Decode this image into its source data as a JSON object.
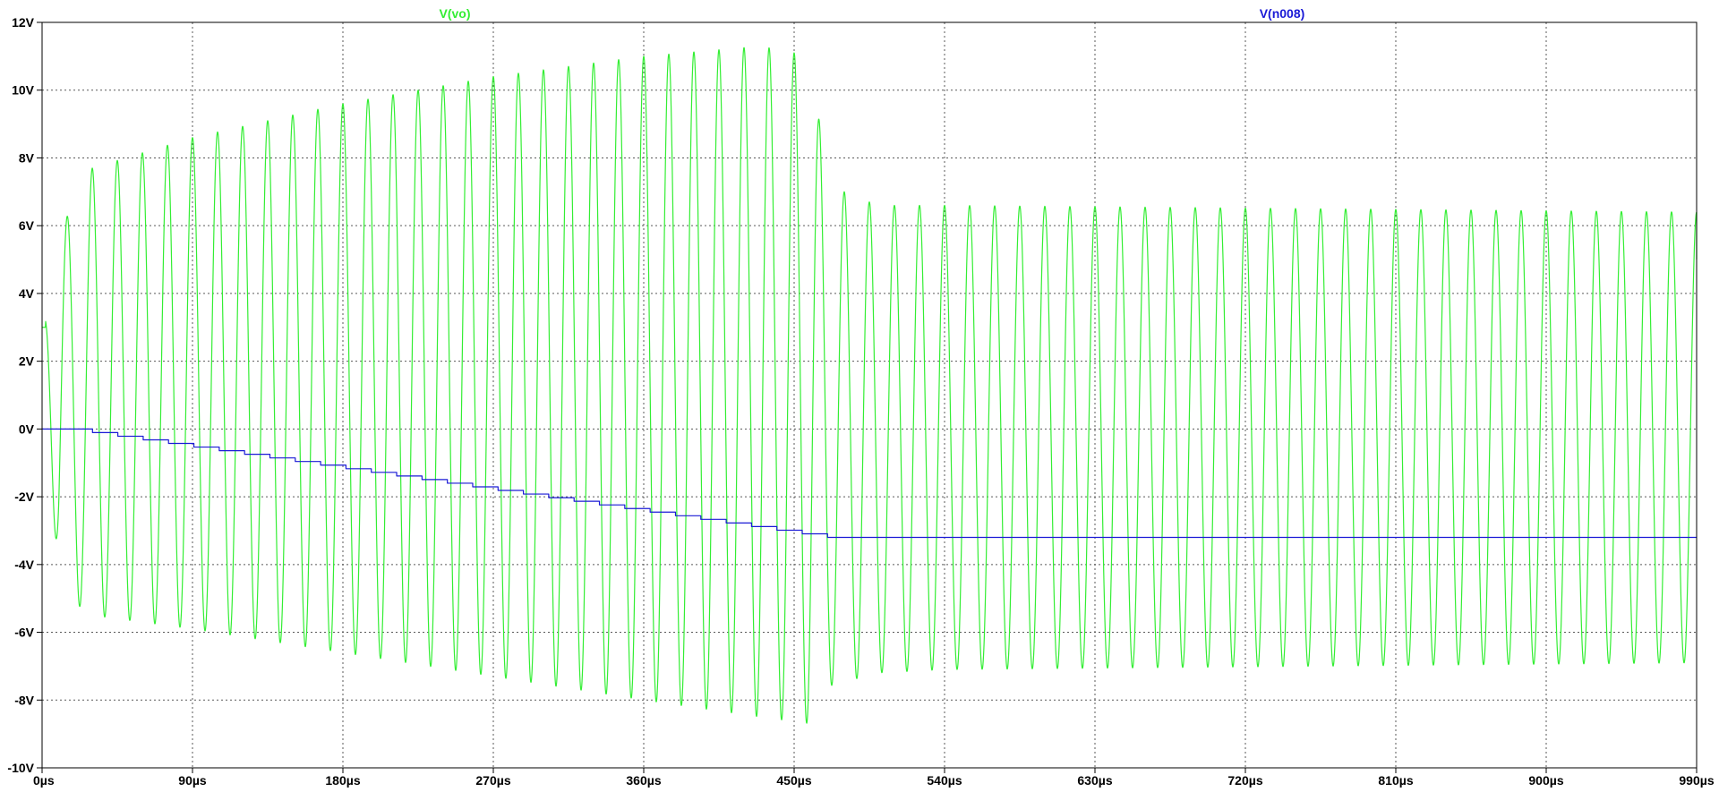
{
  "chart_data": {
    "type": "line",
    "x_unit": "µs",
    "y_unit": "V",
    "xlim": [
      0,
      990
    ],
    "ylim": [
      -10,
      12
    ],
    "x_ticks": [
      0,
      90,
      180,
      270,
      360,
      450,
      540,
      630,
      720,
      810,
      900,
      990
    ],
    "x_tick_labels": [
      "0µs",
      "90µs",
      "180µs",
      "270µs",
      "360µs",
      "450µs",
      "540µs",
      "630µs",
      "720µs",
      "810µs",
      "900µs",
      "990µs"
    ],
    "y_ticks": [
      12,
      10,
      8,
      6,
      4,
      2,
      0,
      -2,
      -4,
      -6,
      -8,
      -10
    ],
    "y_tick_labels": [
      "12V",
      "10V",
      "8V",
      "6V",
      "4V",
      "2V",
      "0V",
      "-2V",
      "-4V",
      "-6V",
      "-8V",
      "-10V"
    ],
    "grid": true,
    "grid_style": "dotted",
    "series": [
      {
        "name": "V(vo)",
        "color": "#33ee33",
        "shape": "oscillation",
        "period_us": 15,
        "start_value": 3,
        "envelope": [
          {
            "x": 0,
            "max": 3,
            "min": 3
          },
          {
            "x": 10,
            "max": 5.8,
            "min": -4.8
          },
          {
            "x": 30,
            "max": 7.7,
            "min": -5.5
          },
          {
            "x": 90,
            "max": 8.6,
            "min": -5.9
          },
          {
            "x": 180,
            "max": 9.6,
            "min": -6.6
          },
          {
            "x": 270,
            "max": 10.4,
            "min": -7.3
          },
          {
            "x": 360,
            "max": 11.0,
            "min": -8.0
          },
          {
            "x": 430,
            "max": 11.3,
            "min": -8.5
          },
          {
            "x": 460,
            "max": 11.0,
            "min": -8.7
          },
          {
            "x": 470,
            "max": 7.2,
            "min": -7.6
          },
          {
            "x": 500,
            "max": 6.6,
            "min": -7.2
          },
          {
            "x": 540,
            "max": 6.6,
            "min": -7.1
          },
          {
            "x": 990,
            "max": 6.4,
            "min": -6.9
          }
        ],
        "end_value": 5
      },
      {
        "name": "V(n008)",
        "color": "#1a1ad6",
        "shape": "staircase",
        "points": [
          {
            "x": 0,
            "y": 0
          },
          {
            "x": 15,
            "y": 0
          },
          {
            "x": 470,
            "y": -3.2
          },
          {
            "x": 990,
            "y": -3.2
          }
        ]
      }
    ],
    "legend": [
      {
        "label": "V(vo)",
        "color": "#33ee33"
      },
      {
        "label": "V(n008)",
        "color": "#1a1ad6"
      }
    ]
  }
}
